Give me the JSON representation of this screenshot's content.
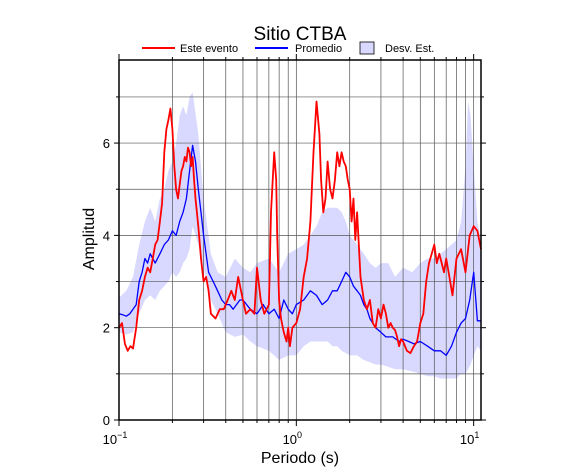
{
  "chart_data": {
    "type": "line",
    "title": "Sitio CTBA",
    "xlabel": "Periodo (s)",
    "ylabel": "Amplitud",
    "xscale": "log",
    "xlim": [
      0.1,
      11
    ],
    "ylim": [
      0,
      7.8
    ],
    "grid": true,
    "legend_position": "top",
    "x_ticks": [
      {
        "value": 0.1,
        "base": "10",
        "exp": "−1"
      },
      {
        "value": 1,
        "base": "10",
        "exp": "0"
      },
      {
        "value": 10,
        "base": "10",
        "exp": "1"
      }
    ],
    "y_ticks": [
      0,
      2,
      4,
      6
    ],
    "legend": [
      {
        "label": "Este evento",
        "kind": "line",
        "color": "#ff0000"
      },
      {
        "label": "Promedio",
        "kind": "line",
        "color": "#0000ff"
      },
      {
        "label": "Desv. Est.",
        "kind": "patch",
        "color": "#d9d9ff"
      }
    ],
    "series": [
      {
        "name": "Este evento",
        "color": "#ff0000",
        "x": [
          0.1,
          0.104,
          0.108,
          0.112,
          0.116,
          0.12,
          0.125,
          0.13,
          0.135,
          0.14,
          0.145,
          0.15,
          0.155,
          0.16,
          0.165,
          0.17,
          0.175,
          0.18,
          0.185,
          0.19,
          0.195,
          0.2,
          0.205,
          0.21,
          0.215,
          0.22,
          0.225,
          0.23,
          0.235,
          0.24,
          0.245,
          0.25,
          0.255,
          0.26,
          0.265,
          0.27,
          0.28,
          0.29,
          0.3,
          0.31,
          0.32,
          0.33,
          0.35,
          0.37,
          0.39,
          0.41,
          0.43,
          0.45,
          0.47,
          0.5,
          0.52,
          0.55,
          0.58,
          0.6,
          0.63,
          0.66,
          0.7,
          0.72,
          0.75,
          0.77,
          0.78,
          0.8,
          0.82,
          0.85,
          0.88,
          0.9,
          0.92,
          0.95,
          1.0,
          1.05,
          1.1,
          1.15,
          1.2,
          1.25,
          1.3,
          1.35,
          1.38,
          1.42,
          1.46,
          1.5,
          1.55,
          1.6,
          1.65,
          1.7,
          1.75,
          1.8,
          1.85,
          1.9,
          1.95,
          2.0,
          2.05,
          2.1,
          2.15,
          2.2,
          2.3,
          2.4,
          2.5,
          2.6,
          2.7,
          2.8,
          2.9,
          3.0,
          3.1,
          3.2,
          3.3,
          3.4,
          3.5,
          3.6,
          3.7,
          3.8,
          3.9,
          4.0,
          4.2,
          4.4,
          4.6,
          4.8,
          5.0,
          5.2,
          5.4,
          5.6,
          5.8,
          6.0,
          6.2,
          6.4,
          6.6,
          6.8,
          7.0,
          7.3,
          7.6,
          8.0,
          8.5,
          9.0,
          9.5,
          10.0,
          10.5,
          11.0
        ],
        "values": [
          2.0,
          2.1,
          1.65,
          1.5,
          1.6,
          1.55,
          2.0,
          2.6,
          2.8,
          3.1,
          3.3,
          3.2,
          3.5,
          3.8,
          3.9,
          4.3,
          4.7,
          5.8,
          6.3,
          6.5,
          6.75,
          6.3,
          5.5,
          5.0,
          4.8,
          5.1,
          5.4,
          5.5,
          5.7,
          5.6,
          5.9,
          5.8,
          5.5,
          5.7,
          5.2,
          4.8,
          4.2,
          3.5,
          3.0,
          3.1,
          2.8,
          2.3,
          2.2,
          2.4,
          2.4,
          2.6,
          2.8,
          2.6,
          3.1,
          2.6,
          2.3,
          2.4,
          2.3,
          3.3,
          2.6,
          2.3,
          2.5,
          4.5,
          5.8,
          5.2,
          4.0,
          2.6,
          2.2,
          1.9,
          1.7,
          2.0,
          1.6,
          2.0,
          2.1,
          2.4,
          3.1,
          3.5,
          4.3,
          5.8,
          6.9,
          6.2,
          5.2,
          4.5,
          4.8,
          5.6,
          5.0,
          4.8,
          5.2,
          5.8,
          5.5,
          5.8,
          5.6,
          5.5,
          5.2,
          5.0,
          4.3,
          4.8,
          3.9,
          4.5,
          3.1,
          2.6,
          2.4,
          2.6,
          2.1,
          2.0,
          2.4,
          2.2,
          2.5,
          2.3,
          2.0,
          2.1,
          2.0,
          1.95,
          1.8,
          1.6,
          1.75,
          1.7,
          1.5,
          1.45,
          1.6,
          1.7,
          2.1,
          2.3,
          3.0,
          3.4,
          3.6,
          3.8,
          3.4,
          3.6,
          3.4,
          3.2,
          3.5,
          3.1,
          2.7,
          3.5,
          3.7,
          3.2,
          4.0,
          4.2,
          4.1,
          3.7
        ]
      },
      {
        "name": "Promedio",
        "color": "#0000ff",
        "x": [
          0.1,
          0.105,
          0.11,
          0.115,
          0.12,
          0.125,
          0.13,
          0.135,
          0.14,
          0.145,
          0.15,
          0.16,
          0.17,
          0.18,
          0.19,
          0.2,
          0.21,
          0.22,
          0.23,
          0.24,
          0.25,
          0.26,
          0.27,
          0.28,
          0.29,
          0.3,
          0.32,
          0.34,
          0.36,
          0.38,
          0.4,
          0.42,
          0.44,
          0.46,
          0.48,
          0.5,
          0.55,
          0.6,
          0.65,
          0.7,
          0.75,
          0.8,
          0.85,
          0.9,
          0.95,
          1.0,
          1.1,
          1.2,
          1.3,
          1.4,
          1.5,
          1.6,
          1.7,
          1.8,
          1.9,
          2.0,
          2.1,
          2.2,
          2.3,
          2.4,
          2.5,
          2.6,
          2.8,
          3.0,
          3.2,
          3.5,
          3.8,
          4.0,
          4.3,
          4.6,
          5.0,
          5.5,
          6.0,
          6.5,
          7.0,
          7.5,
          8.0,
          8.5,
          9.0,
          9.5,
          10.0,
          10.5,
          11.0
        ],
        "values": [
          2.3,
          2.28,
          2.25,
          2.3,
          2.4,
          2.5,
          3.0,
          3.2,
          3.5,
          3.4,
          3.6,
          3.4,
          3.6,
          3.8,
          3.9,
          4.1,
          4.0,
          4.3,
          4.5,
          4.8,
          5.4,
          5.95,
          5.6,
          5.0,
          4.5,
          4.0,
          3.2,
          3.0,
          2.8,
          2.6,
          2.5,
          2.5,
          2.4,
          2.5,
          2.6,
          2.6,
          2.4,
          2.3,
          2.5,
          2.3,
          2.4,
          2.2,
          2.6,
          2.4,
          2.3,
          2.5,
          2.6,
          2.8,
          2.7,
          2.5,
          2.6,
          2.8,
          2.8,
          3.0,
          3.2,
          3.1,
          2.9,
          2.8,
          2.7,
          2.5,
          2.4,
          2.2,
          2.0,
          1.9,
          1.8,
          1.8,
          1.7,
          1.75,
          1.7,
          1.65,
          1.7,
          1.6,
          1.5,
          1.5,
          1.4,
          1.6,
          1.9,
          2.1,
          2.2,
          2.6,
          3.2,
          2.15,
          2.15
        ]
      }
    ],
    "band": {
      "name": "Desv. Est.",
      "color": "#d9d9ff",
      "x": [
        0.1,
        0.11,
        0.12,
        0.13,
        0.14,
        0.15,
        0.16,
        0.17,
        0.18,
        0.19,
        0.2,
        0.21,
        0.22,
        0.23,
        0.24,
        0.25,
        0.26,
        0.28,
        0.3,
        0.33,
        0.36,
        0.4,
        0.45,
        0.5,
        0.55,
        0.6,
        0.7,
        0.8,
        0.9,
        1.0,
        1.1,
        1.2,
        1.3,
        1.4,
        1.5,
        1.6,
        1.7,
        1.8,
        1.9,
        2.0,
        2.2,
        2.4,
        2.6,
        2.8,
        3.0,
        3.3,
        3.6,
        4.0,
        4.5,
        5.0,
        5.5,
        6.0,
        6.5,
        7.0,
        7.5,
        8.0,
        8.5,
        9.0,
        9.3,
        9.6,
        10.0,
        10.5,
        11.0
      ],
      "upper": [
        2.65,
        2.8,
        3.1,
        3.8,
        4.3,
        4.6,
        4.3,
        4.8,
        5.0,
        5.4,
        5.6,
        6.0,
        6.6,
        6.8,
        6.6,
        7.0,
        7.1,
        6.2,
        4.8,
        3.6,
        3.2,
        3.1,
        3.5,
        3.3,
        3.2,
        3.4,
        3.5,
        3.2,
        3.6,
        3.7,
        3.8,
        4.0,
        4.2,
        4.5,
        4.6,
        4.6,
        4.6,
        4.5,
        4.3,
        4.0,
        3.8,
        3.6,
        3.4,
        3.3,
        3.4,
        3.4,
        3.1,
        3.3,
        3.2,
        3.4,
        3.5,
        3.5,
        3.6,
        3.7,
        3.8,
        3.9,
        4.3,
        5.5,
        6.9,
        6.6,
        5.5,
        4.3,
        3.9
      ],
      "lower": [
        1.9,
        1.85,
        1.9,
        2.3,
        2.6,
        2.7,
        2.6,
        2.8,
        2.9,
        3.0,
        3.2,
        3.1,
        3.2,
        3.4,
        3.5,
        3.7,
        4.2,
        3.8,
        3.3,
        2.6,
        2.3,
        1.9,
        1.8,
        1.85,
        1.7,
        1.6,
        1.5,
        1.3,
        1.4,
        1.4,
        1.6,
        1.7,
        1.7,
        1.7,
        1.7,
        1.6,
        1.6,
        1.5,
        1.45,
        1.4,
        1.4,
        1.3,
        1.25,
        1.2,
        1.2,
        1.15,
        1.1,
        1.1,
        1.05,
        1.0,
        0.95,
        0.95,
        0.9,
        0.9,
        0.9,
        0.9,
        1.0,
        1.0,
        1.1,
        1.2,
        1.4,
        1.6,
        1.5
      ]
    }
  }
}
